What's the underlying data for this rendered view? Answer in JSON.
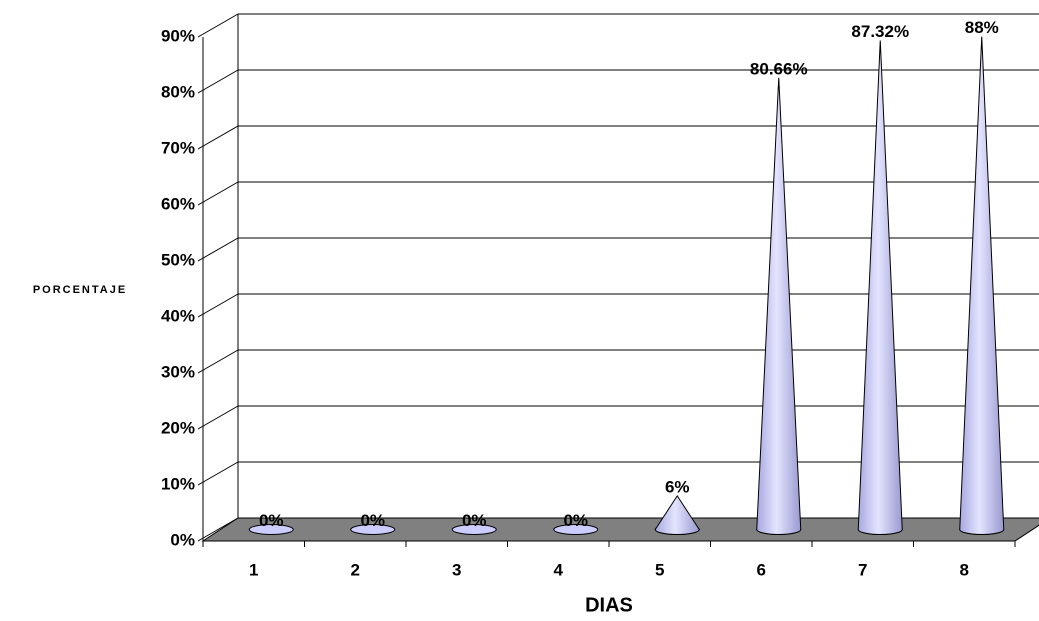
{
  "chart_data": {
    "type": "cone",
    "x_label": "DIAS",
    "y_label": "PORCENTAJE",
    "categories": [
      "1",
      "2",
      "3",
      "4",
      "5",
      "6",
      "7",
      "8"
    ],
    "values": [
      0,
      0,
      0,
      0,
      6,
      80.66,
      87.32,
      88
    ],
    "value_labels": [
      "0%",
      "0%",
      "0%",
      "0%",
      "6%",
      "80.66%",
      "87.32%",
      "88%"
    ],
    "color": "#ccccff",
    "ylim": [
      0,
      90
    ],
    "yticks": [
      {
        "value": 0,
        "label": "0%"
      },
      {
        "value": 10,
        "label": "10%"
      },
      {
        "value": 20,
        "label": "20%"
      },
      {
        "value": 30,
        "label": "30%"
      },
      {
        "value": 40,
        "label": "40%"
      },
      {
        "value": 50,
        "label": "50%"
      },
      {
        "value": 60,
        "label": "60%"
      },
      {
        "value": 70,
        "label": "70%"
      },
      {
        "value": 80,
        "label": "80%"
      },
      {
        "value": 90,
        "label": "90%"
      }
    ],
    "grid": true
  }
}
